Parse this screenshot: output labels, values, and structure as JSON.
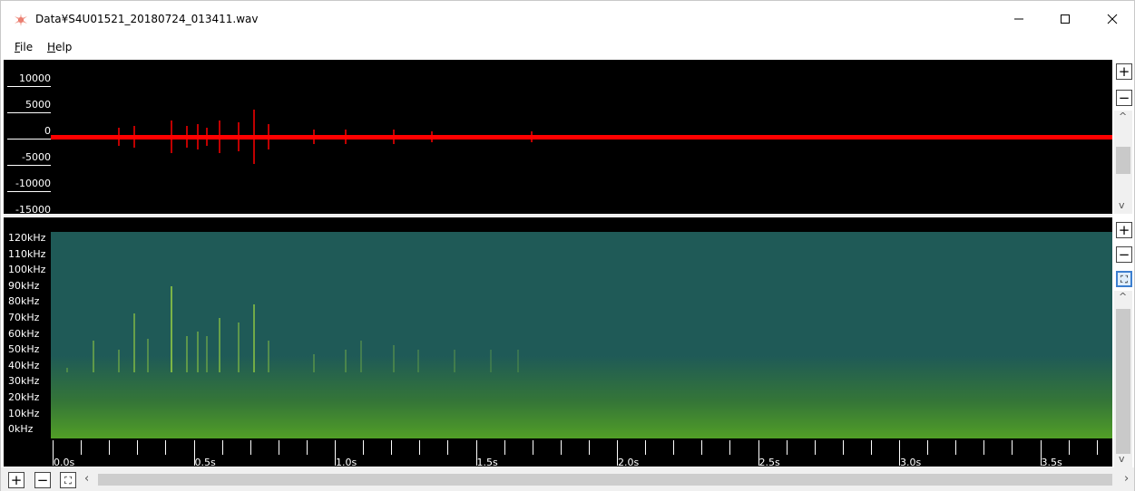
{
  "window": {
    "title": "Data¥S4U01521_20180724_013411.wav",
    "minimize_glyph": "—",
    "maximize_glyph": "☐",
    "close_glyph": "✕",
    "icon": "bat-icon"
  },
  "menu": {
    "file_prefix": "",
    "file_key": "F",
    "file_rest": "ile",
    "help_key": "H",
    "help_rest": "elp"
  },
  "waveform": {
    "y_ticks": [
      "10000",
      "5000",
      "0",
      "-5000",
      "-10000",
      "-15000"
    ],
    "color": "#ff0000",
    "zoom_in_glyph": "+",
    "zoom_out_glyph": "−"
  },
  "spectrogram": {
    "freq_labels": [
      "120kHz",
      "110kHz",
      "100kHz",
      "90kHz",
      "80kHz",
      "70kHz",
      "60kHz",
      "50kHz",
      "40kHz",
      "30kHz",
      "20kHz",
      "10kHz",
      "0kHz"
    ],
    "time_labels": [
      "0.0s",
      "0.5s",
      "1.0s",
      "1.5s",
      "2.0s",
      "2.5s",
      "3.0s",
      "3.5s"
    ],
    "background_color": "#1f5a57",
    "call_color": "#a8e040",
    "zoom_in_glyph": "+",
    "zoom_out_glyph": "−",
    "fit_glyph": "⛶"
  },
  "bottom": {
    "zoom_in_glyph": "+",
    "zoom_out_glyph": "−",
    "fit_glyph": "⛶"
  }
}
